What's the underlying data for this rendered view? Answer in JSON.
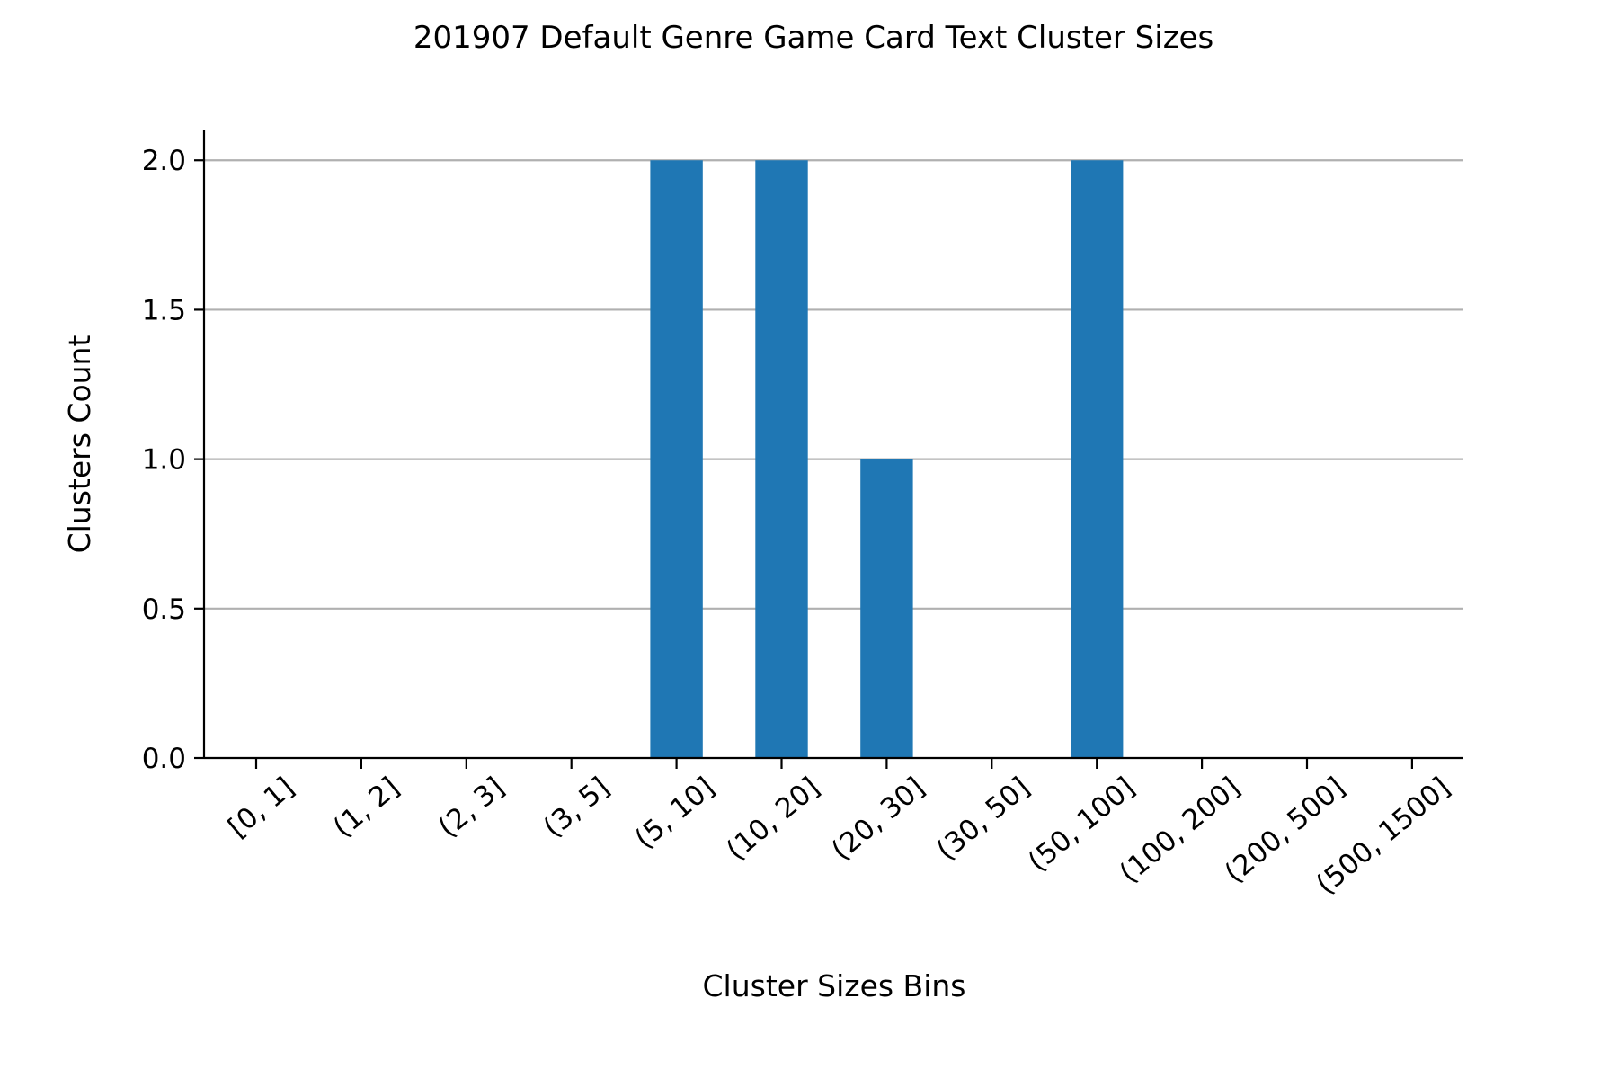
{
  "chart_data": {
    "type": "bar",
    "title": "201907 Default Genre Game Card Text Cluster Sizes",
    "xlabel": "Cluster Sizes Bins",
    "ylabel": "Clusters Count",
    "categories": [
      "[0, 1]",
      "(1, 2]",
      "(2, 3]",
      "(3, 5]",
      "(5, 10]",
      "(10, 20]",
      "(20, 30]",
      "(30, 50]",
      "(50, 100]",
      "(100, 200]",
      "(200, 500]",
      "(500, 1500]"
    ],
    "values": [
      0,
      0,
      0,
      0,
      2,
      2,
      1,
      0,
      2,
      0,
      0,
      0
    ],
    "ylim": [
      0,
      2.1
    ],
    "yticks": [
      0.0,
      0.5,
      1.0,
      1.5,
      2.0
    ],
    "ytick_labels": [
      "0.0",
      "0.5",
      "1.0",
      "1.5",
      "2.0"
    ],
    "grid": "y",
    "bar_color": "#1f77b4",
    "grid_color": "#b0b0b0"
  }
}
